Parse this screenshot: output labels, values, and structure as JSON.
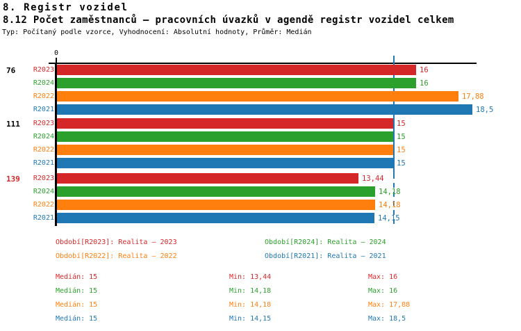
{
  "header": {
    "title1": "8. Registr vozidel",
    "title2": "8.12 Počet zaměstnanců – pracovních úvazků v agendě registr vozidel celkem",
    "subtitle": "Typ: Počítaný podle vzorce, Vyhodnocení: Absolutní hodnoty, Průměr: Medián"
  },
  "colors": {
    "black": "#000000",
    "red": "#d62728",
    "green": "#2ca02c",
    "orange": "#ff7f0e",
    "blue": "#1f77b4"
  },
  "chart_data": {
    "type": "bar",
    "orientation": "horizontal",
    "value_axis": {
      "tick_label": "0",
      "min": 0,
      "max_shown": 18.7
    },
    "median_line": {
      "value": 15,
      "color": "blue",
      "style": "solid-then-dashed"
    },
    "series_order": [
      "R2023",
      "R2024",
      "R2022",
      "R2021"
    ],
    "groups": [
      {
        "label": "76",
        "label_color": "black",
        "bars": [
          {
            "series": "R2023",
            "color": "red",
            "value": 16,
            "label": "16"
          },
          {
            "series": "R2024",
            "color": "green",
            "value": 16,
            "label": "16"
          },
          {
            "series": "R2022",
            "color": "orange",
            "value": 17.88,
            "label": "17,88"
          },
          {
            "series": "R2021",
            "color": "blue",
            "value": 18.5,
            "label": "18,5"
          }
        ]
      },
      {
        "label": "111",
        "label_color": "black",
        "bars": [
          {
            "series": "R2023",
            "color": "red",
            "value": 15,
            "label": "15"
          },
          {
            "series": "R2024",
            "color": "green",
            "value": 15,
            "label": "15"
          },
          {
            "series": "R2022",
            "color": "orange",
            "value": 15,
            "label": "15"
          },
          {
            "series": "R2021",
            "color": "blue",
            "value": 15,
            "label": "15"
          }
        ]
      },
      {
        "label": "139",
        "label_color": "red",
        "bars": [
          {
            "series": "R2023",
            "color": "red",
            "value": 13.44,
            "label": "13,44"
          },
          {
            "series": "R2024",
            "color": "green",
            "value": 14.18,
            "label": "14,18"
          },
          {
            "series": "R2022",
            "color": "orange",
            "value": 14.18,
            "label": "14,18"
          },
          {
            "series": "R2021",
            "color": "blue",
            "value": 14.15,
            "label": "14,15"
          }
        ]
      }
    ]
  },
  "legend": {
    "items": [
      {
        "label": "Období[R2023]: Realita – 2023",
        "color": "red"
      },
      {
        "label": "Období[R2024]: Realita – 2024",
        "color": "green"
      },
      {
        "label": "Období[R2022]: Realita – 2022",
        "color": "orange"
      },
      {
        "label": "Období[R2021]: Realita – 2021",
        "color": "blue"
      }
    ]
  },
  "stats": {
    "rows": [
      {
        "series": "R2023",
        "color": "red",
        "median": "Medián: 15",
        "min": "Min: 13,44",
        "max": "Max: 16"
      },
      {
        "series": "R2024",
        "color": "green",
        "median": "Medián: 15",
        "min": "Min: 14,18",
        "max": "Max: 16"
      },
      {
        "series": "R2022",
        "color": "orange",
        "median": "Medián: 15",
        "min": "Min: 14,18",
        "max": "Max: 17,88"
      },
      {
        "series": "R2021",
        "color": "blue",
        "median": "Medián: 15",
        "min": "Min: 14,15",
        "max": "Max: 18,5"
      }
    ]
  }
}
